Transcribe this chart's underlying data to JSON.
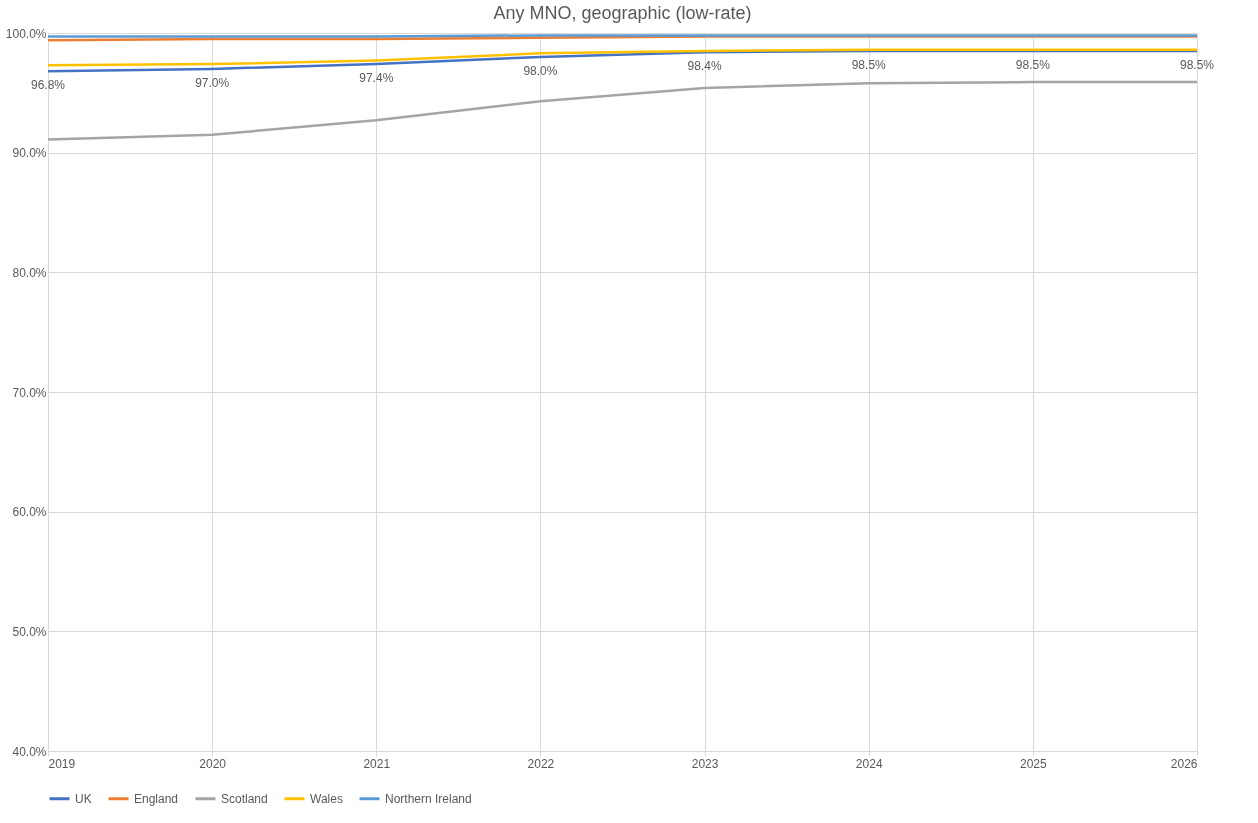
{
  "chart_data": {
    "type": "line",
    "title": "Any MNO, geographic (low-rate)",
    "x": [
      2019,
      2020,
      2021,
      2022,
      2023,
      2024,
      2025,
      2026
    ],
    "series": [
      {
        "name": "UK",
        "color": "#4472c4",
        "values": [
          96.8,
          97.0,
          97.4,
          98.0,
          98.4,
          98.5,
          98.5,
          98.5
        ],
        "value_labels": [
          "96.8%",
          "97.0%",
          "97.4%",
          "98.0%",
          "98.4%",
          "98.5%",
          "98.5%",
          "98.5%"
        ]
      },
      {
        "name": "England",
        "color": "#ed7d31",
        "values": [
          99.4,
          99.5,
          99.5,
          99.6,
          99.7,
          99.7,
          99.7,
          99.7
        ]
      },
      {
        "name": "Scotland",
        "color": "#a5a5a5",
        "values": [
          91.1,
          91.5,
          92.7,
          94.3,
          95.4,
          95.8,
          95.9,
          95.9
        ]
      },
      {
        "name": "Wales",
        "color": "#ffc000",
        "values": [
          97.3,
          97.4,
          97.7,
          98.3,
          98.5,
          98.6,
          98.6,
          98.6
        ]
      },
      {
        "name": "Northern Ireland",
        "color": "#5b9bd5",
        "values": [
          99.7,
          99.7,
          99.7,
          99.8,
          99.8,
          99.8,
          99.8,
          99.8
        ]
      }
    ],
    "xlim": [
      2019,
      2026
    ],
    "xticks": [
      2019,
      2020,
      2021,
      2022,
      2023,
      2024,
      2025,
      2026
    ],
    "ylim": [
      40,
      100
    ],
    "yticks": [
      {
        "value": 40,
        "label": "40.0%"
      },
      {
        "value": 50,
        "label": "50.0%"
      },
      {
        "value": 60,
        "label": "60.0%"
      },
      {
        "value": 70,
        "label": "70.0%"
      },
      {
        "value": 80,
        "label": "80.0%"
      },
      {
        "value": 90,
        "label": "90.0%"
      },
      {
        "value": 100,
        "label": "100.0%"
      }
    ],
    "grid": true,
    "legend": "bottom",
    "marker": "none",
    "line_style": "solid"
  }
}
